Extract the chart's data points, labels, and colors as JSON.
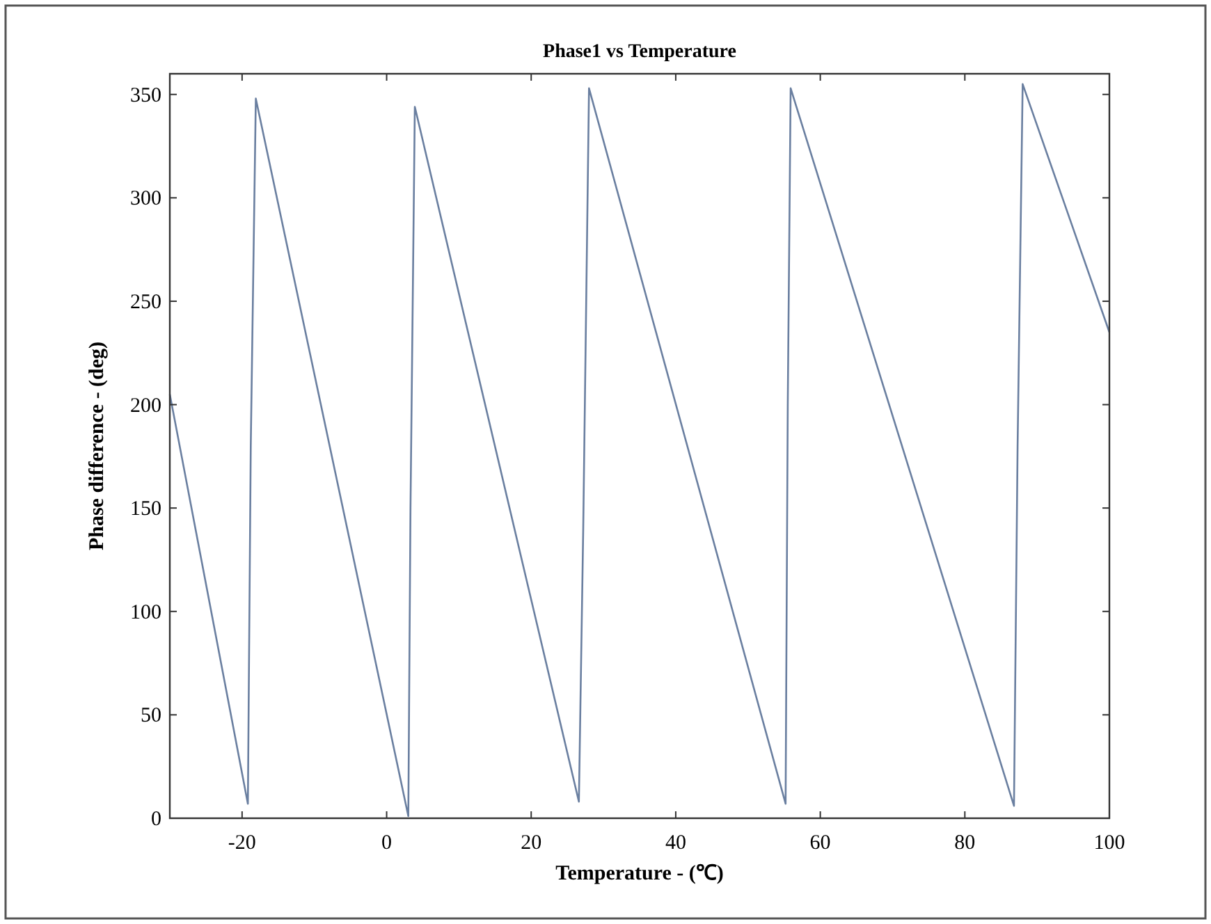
{
  "chart_data": {
    "type": "line",
    "title": "Phase1 vs Temperature",
    "xlabel": "Temperature - (℃)",
    "ylabel": "Phase difference - (deg)",
    "x": [
      -30,
      -19.2,
      -18.8,
      -18.1,
      3.0,
      3.3,
      3.9,
      26.6,
      27.2,
      28.0,
      55.2,
      55.5,
      55.9,
      86.8,
      87.3,
      88.0,
      100
    ],
    "series": [
      {
        "color": "#6a7fa0",
        "values": [
          205,
          7,
          180,
          348,
          1,
          150,
          344,
          8,
          140,
          353,
          7,
          200,
          353,
          6,
          180,
          355,
          235
        ]
      }
    ],
    "xlim": [
      -30,
      100
    ],
    "xticks": [
      -20,
      0,
      20,
      40,
      60,
      80,
      100
    ],
    "ylim": [
      0,
      360
    ],
    "yticks": [
      0,
      50,
      100,
      150,
      200,
      250,
      300,
      350
    ],
    "grid": false,
    "marker": "none",
    "line_style": "solid"
  }
}
